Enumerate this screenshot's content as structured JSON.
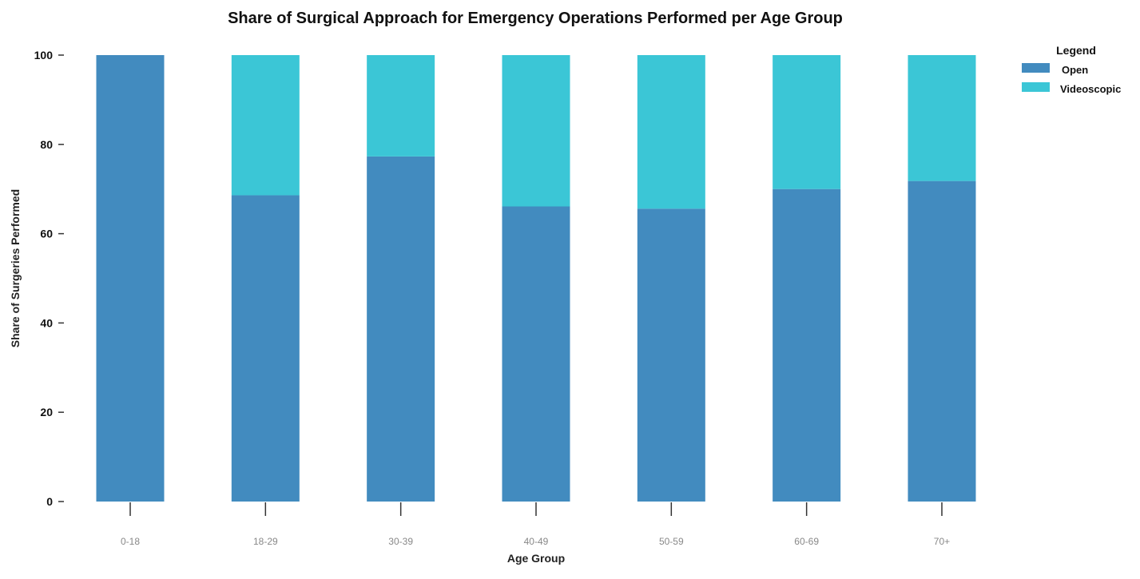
{
  "chart_data": {
    "type": "bar",
    "stacked": true,
    "title": "Share of Surgical Approach for Emergency Operations Performed per Age Group",
    "xlabel": "Age Group",
    "ylabel": "Share of Surgeries Performed",
    "ylim": [
      0,
      100
    ],
    "yticks": [
      0,
      20,
      40,
      60,
      80,
      100
    ],
    "categories": [
      "0-18",
      "18-29",
      "30-39",
      "40-49",
      "50-59",
      "60-69",
      "70+"
    ],
    "series": [
      {
        "name": "Open",
        "color": "#428bbf",
        "values": [
          100,
          68.6,
          77.3,
          66.1,
          65.6,
          70.0,
          71.8
        ]
      },
      {
        "name": "Videoscopic",
        "color": "#3bc6d6",
        "values": [
          0,
          31.4,
          22.7,
          33.9,
          34.4,
          30.0,
          28.2
        ]
      }
    ],
    "legend": {
      "title": "Legend",
      "position": "top-right"
    },
    "grid": false
  }
}
